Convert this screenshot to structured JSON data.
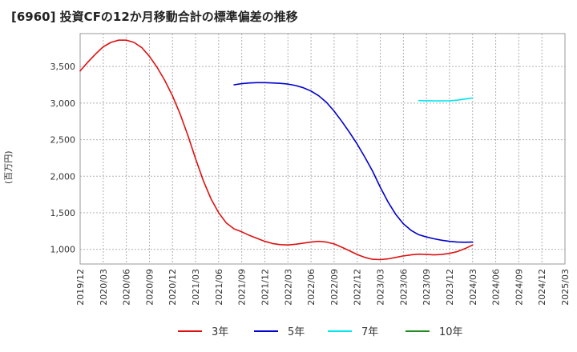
{
  "chart_data": {
    "type": "line",
    "title": "[6960]  投資CFの12か月移動合計の標準偏差の推移",
    "ylabel": "(百万円)",
    "xlabel": "",
    "ylim": [
      800,
      3950
    ],
    "y_ticks": [
      1000,
      1500,
      2000,
      2500,
      3000,
      3500
    ],
    "y_tick_labels": [
      "1,000",
      "1,500",
      "2,000",
      "2,500",
      "3,000",
      "3,500"
    ],
    "x_tick_labels": [
      "2019/12",
      "2020/03",
      "2020/06",
      "2020/09",
      "2020/12",
      "2021/03",
      "2021/06",
      "2021/09",
      "2021/12",
      "2022/03",
      "2022/06",
      "2022/09",
      "2022/12",
      "2023/03",
      "2023/06",
      "2023/09",
      "2023/12",
      "2024/03",
      "2024/06",
      "2024/09",
      "2024/12",
      "2025/03"
    ],
    "grid": true,
    "legend_position": "bottom",
    "series": [
      {
        "name": "3年",
        "color": "#dd1111",
        "points": [
          [
            "2019/12",
            3440
          ],
          [
            "2020/01",
            3560
          ],
          [
            "2020/02",
            3670
          ],
          [
            "2020/03",
            3770
          ],
          [
            "2020/04",
            3830
          ],
          [
            "2020/05",
            3860
          ],
          [
            "2020/06",
            3860
          ],
          [
            "2020/07",
            3830
          ],
          [
            "2020/08",
            3760
          ],
          [
            "2020/09",
            3640
          ],
          [
            "2020/10",
            3490
          ],
          [
            "2020/11",
            3310
          ],
          [
            "2020/12",
            3100
          ],
          [
            "2021/01",
            2850
          ],
          [
            "2021/02",
            2560
          ],
          [
            "2021/03",
            2240
          ],
          [
            "2021/04",
            1940
          ],
          [
            "2021/05",
            1690
          ],
          [
            "2021/06",
            1500
          ],
          [
            "2021/07",
            1360
          ],
          [
            "2021/08",
            1280
          ],
          [
            "2021/09",
            1240
          ],
          [
            "2021/10",
            1190
          ],
          [
            "2021/11",
            1150
          ],
          [
            "2021/12",
            1110
          ],
          [
            "2022/01",
            1080
          ],
          [
            "2022/02",
            1065
          ],
          [
            "2022/03",
            1060
          ],
          [
            "2022/04",
            1070
          ],
          [
            "2022/05",
            1085
          ],
          [
            "2022/06",
            1100
          ],
          [
            "2022/07",
            1110
          ],
          [
            "2022/08",
            1100
          ],
          [
            "2022/09",
            1075
          ],
          [
            "2022/10",
            1030
          ],
          [
            "2022/11",
            980
          ],
          [
            "2022/12",
            930
          ],
          [
            "2023/01",
            890
          ],
          [
            "2023/02",
            865
          ],
          [
            "2023/03",
            860
          ],
          [
            "2023/04",
            870
          ],
          [
            "2023/05",
            890
          ],
          [
            "2023/06",
            910
          ],
          [
            "2023/07",
            925
          ],
          [
            "2023/08",
            935
          ],
          [
            "2023/09",
            930
          ],
          [
            "2023/10",
            925
          ],
          [
            "2023/11",
            930
          ],
          [
            "2023/12",
            945
          ],
          [
            "2024/01",
            970
          ],
          [
            "2024/02",
            1010
          ],
          [
            "2024/03",
            1060
          ]
        ]
      },
      {
        "name": "5年",
        "color": "#0000cc",
        "points": [
          [
            "2021/08",
            3250
          ],
          [
            "2021/09",
            3265
          ],
          [
            "2021/10",
            3275
          ],
          [
            "2021/11",
            3280
          ],
          [
            "2021/12",
            3280
          ],
          [
            "2022/01",
            3275
          ],
          [
            "2022/02",
            3270
          ],
          [
            "2022/03",
            3260
          ],
          [
            "2022/04",
            3240
          ],
          [
            "2022/05",
            3210
          ],
          [
            "2022/06",
            3165
          ],
          [
            "2022/07",
            3100
          ],
          [
            "2022/08",
            3010
          ],
          [
            "2022/09",
            2890
          ],
          [
            "2022/10",
            2750
          ],
          [
            "2022/11",
            2600
          ],
          [
            "2022/12",
            2440
          ],
          [
            "2023/01",
            2260
          ],
          [
            "2023/02",
            2070
          ],
          [
            "2023/03",
            1850
          ],
          [
            "2023/04",
            1650
          ],
          [
            "2023/05",
            1480
          ],
          [
            "2023/06",
            1350
          ],
          [
            "2023/07",
            1260
          ],
          [
            "2023/08",
            1200
          ],
          [
            "2023/09",
            1170
          ],
          [
            "2023/10",
            1145
          ],
          [
            "2023/11",
            1125
          ],
          [
            "2023/12",
            1110
          ],
          [
            "2024/01",
            1100
          ],
          [
            "2024/02",
            1098
          ],
          [
            "2024/03",
            1100
          ]
        ]
      },
      {
        "name": "7年",
        "color": "#00e5ee",
        "points": [
          [
            "2023/08",
            3035
          ],
          [
            "2023/09",
            3032
          ],
          [
            "2023/10",
            3030
          ],
          [
            "2023/11",
            3030
          ],
          [
            "2023/12",
            3032
          ],
          [
            "2024/01",
            3040
          ],
          [
            "2024/02",
            3055
          ],
          [
            "2024/03",
            3070
          ]
        ]
      },
      {
        "name": "10年",
        "color": "#228b22",
        "points": []
      }
    ]
  }
}
